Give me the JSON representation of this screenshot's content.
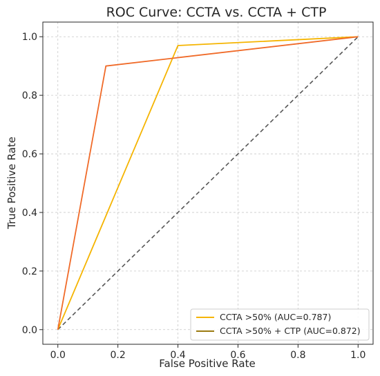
{
  "chart_data": {
    "type": "line",
    "title": "ROC Curve: CCTA vs. CCTA + CTP",
    "xlabel": "False Positive Rate",
    "ylabel": "True Positive Rate",
    "xlim": [
      -0.05,
      1.05
    ],
    "ylim": [
      -0.05,
      1.05
    ],
    "xticks": [
      "0.0",
      "0.2",
      "0.4",
      "0.6",
      "0.8",
      "1.0"
    ],
    "yticks": [
      "0.0",
      "0.2",
      "0.4",
      "0.6",
      "0.8",
      "1.0"
    ],
    "tick_values": [
      0,
      0.2,
      0.4,
      0.6,
      0.8,
      1.0
    ],
    "grid": true,
    "legend_position": "bottom-right",
    "series": [
      {
        "name": "CCTA >50% (AUC=0.787)",
        "color": "#f5b400",
        "x": [
          0,
          0.4,
          1.0
        ],
        "y": [
          0,
          0.97,
          1.0
        ]
      },
      {
        "name": "CCTA >50% + CTP (AUC=0.872)",
        "color": "#9a7a10",
        "legend_color": "#9a7a10",
        "line_color": "#f06a28",
        "x": [
          0,
          0.16,
          1.0
        ],
        "y": [
          0,
          0.9,
          1.0
        ]
      }
    ],
    "reference_line": {
      "x": [
        0,
        1
      ],
      "y": [
        0,
        1
      ],
      "color": "#555555",
      "style": "dashed"
    }
  }
}
